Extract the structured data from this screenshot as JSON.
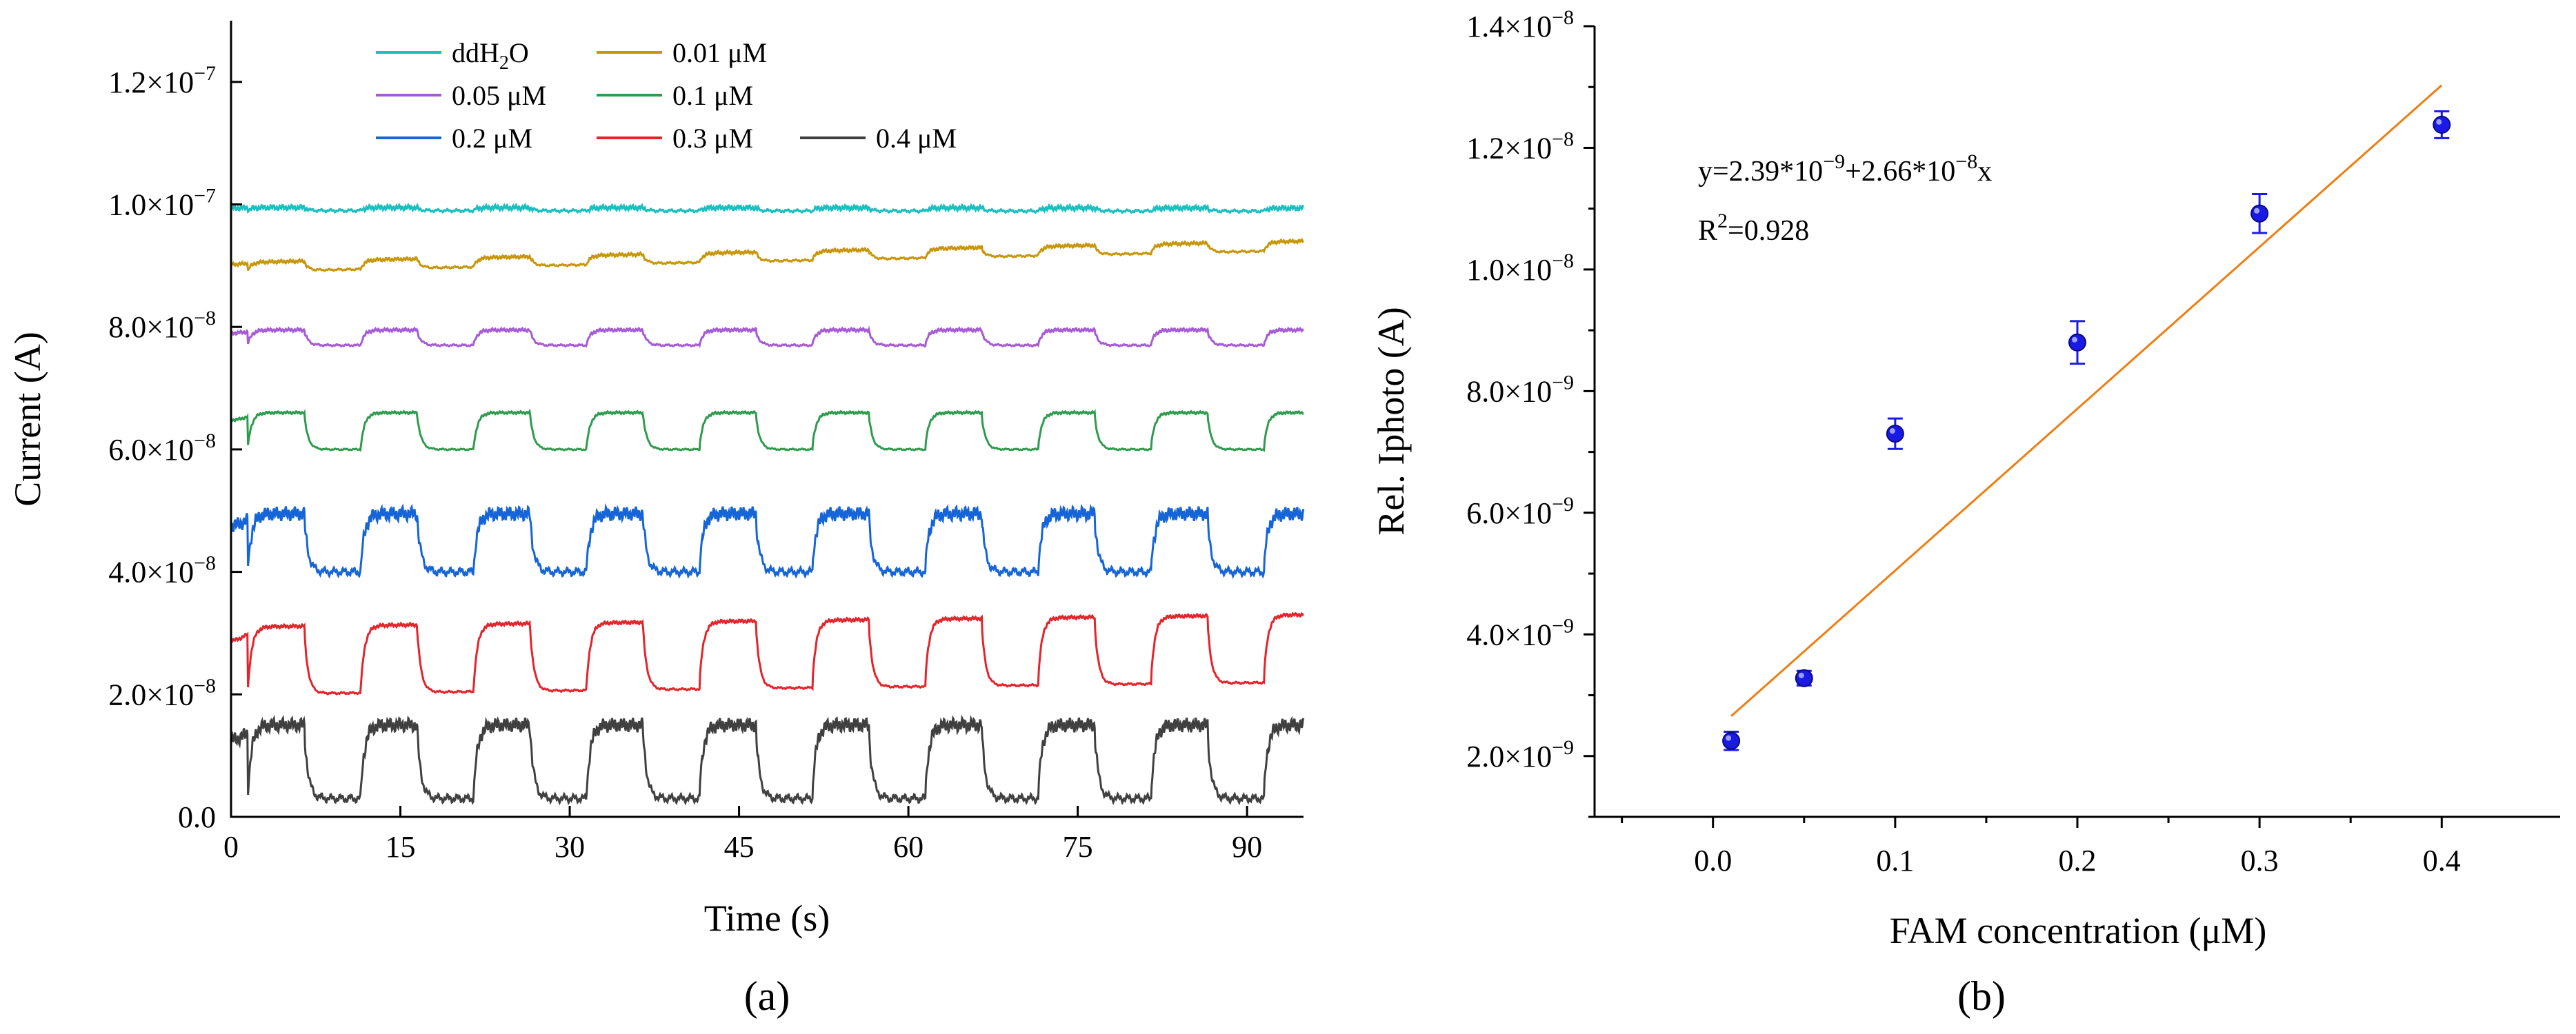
{
  "chart_data": [
    {
      "type": "line",
      "panel": "(a)",
      "title": "",
      "xlabel": "Time (s)",
      "ylabel": "Current (A)",
      "xlim": [
        0,
        95
      ],
      "ylim": [
        0,
        1.3e-07
      ],
      "xticks": [
        0,
        15,
        30,
        45,
        60,
        75,
        90
      ],
      "xtick_labels": [
        "0",
        "15",
        "30",
        "45",
        "60",
        "75",
        "90"
      ],
      "yticks": [
        {
          "value": 0,
          "mant": "0.0",
          "exp": ""
        },
        {
          "value": 2e-08,
          "mant": "2.0×10",
          "exp": "−8"
        },
        {
          "value": 4e-08,
          "mant": "4.0×10",
          "exp": "−8"
        },
        {
          "value": 6e-08,
          "mant": "6.0×10",
          "exp": "−8"
        },
        {
          "value": 8e-08,
          "mant": "8.0×10",
          "exp": "−8"
        },
        {
          "value": 1e-07,
          "mant": "1.0×10",
          "exp": "−7"
        },
        {
          "value": 1.2e-07,
          "mant": "1.2×10",
          "exp": "−7"
        }
      ],
      "light_period_s": 10,
      "light_on_s": 5,
      "legend_position": "top",
      "series": [
        {
          "name": "ddH2O",
          "label_main": "ddH",
          "label_sub": "2",
          "label_tail": "O",
          "color": "#1ABFBF",
          "dark": 9.9e-08,
          "light": 9.95e-08,
          "drift": -1e-10,
          "noise": 3e-10
        },
        {
          "name": "0.01 μM",
          "label_main": "0.01 μM",
          "label_sub": "",
          "label_tail": "",
          "color": "#C8960A",
          "dark": 8.9e-08,
          "light": 9.05e-08,
          "drift": 3.5e-09,
          "noise": 2e-10
        },
        {
          "name": "0.05 μM",
          "label_main": "0.05 μM",
          "label_sub": "",
          "label_tail": "",
          "color": "#A65BD6",
          "dark": 7.7e-08,
          "light": 7.95e-08,
          "drift": 0.0,
          "noise": 2e-10
        },
        {
          "name": "0.1 μM",
          "label_main": "0.1 μM",
          "label_sub": "",
          "label_tail": "",
          "color": "#2E9B4E",
          "dark": 6e-08,
          "light": 6.6e-08,
          "drift": 0.0,
          "noise": 1.5e-10
        },
        {
          "name": "0.2 μM",
          "label_main": "0.2 μM",
          "label_sub": "",
          "label_tail": "",
          "color": "#1565D8",
          "dark": 4e-08,
          "light": 4.95e-08,
          "drift": 0.0,
          "noise": 8e-10
        },
        {
          "name": "0.3 μM",
          "label_main": "0.3 μM",
          "label_sub": "",
          "label_tail": "",
          "color": "#E3242B",
          "dark": 2e-08,
          "light": 3.1e-08,
          "drift": 2e-09,
          "noise": 2e-10
        },
        {
          "name": "0.4 μM",
          "label_main": "0.4 μM",
          "label_sub": "",
          "label_tail": "",
          "color": "#404040",
          "dark": 3e-09,
          "light": 1.5e-08,
          "drift": 0.0,
          "noise": 8e-10
        }
      ]
    },
    {
      "type": "scatter",
      "panel": "(b)",
      "title": "",
      "xlabel": "FAM concentration (μM)",
      "ylabel": "Rel. Iphoto (A)",
      "xlim": [
        -0.065,
        0.465
      ],
      "ylim": [
        1e-09,
        1.4e-08
      ],
      "xticks": [
        0.0,
        0.1,
        0.2,
        0.3,
        0.4
      ],
      "xtick_labels": [
        "0.0",
        "0.1",
        "0.2",
        "0.3",
        "0.4"
      ],
      "yticks": [
        {
          "value": 2e-09,
          "mant": "2.0×10",
          "exp": "−9"
        },
        {
          "value": 4e-09,
          "mant": "4.0×10",
          "exp": "−9"
        },
        {
          "value": 6e-09,
          "mant": "6.0×10",
          "exp": "−9"
        },
        {
          "value": 8e-09,
          "mant": "8.0×10",
          "exp": "−9"
        },
        {
          "value": 1e-08,
          "mant": "1.0×10",
          "exp": "−8"
        },
        {
          "value": 1.2e-08,
          "mant": "1.2×10",
          "exp": "−8"
        },
        {
          "value": 1.4e-08,
          "mant": "1.4×10",
          "exp": "−8"
        }
      ],
      "x": [
        0.01,
        0.05,
        0.1,
        0.2,
        0.3,
        0.4
      ],
      "y": [
        2.25e-09,
        3.28e-09,
        7.3e-09,
        8.8e-09,
        1.092e-08,
        1.238e-08
      ],
      "yerr": [
        1.5e-10,
        1.2e-10,
        2.5e-10,
        3.5e-10,
        3.2e-10,
        2.2e-10
      ],
      "marker_color": "#1A1AE6",
      "fit": {
        "intercept": 2.39e-09,
        "slope": 2.66e-08,
        "x_range": [
          0.01,
          0.4
        ],
        "color": "#F07D10"
      },
      "equation": {
        "p1": "y=2.39*10",
        "s1": "−9",
        "p2": "+2.66*10",
        "s2": "−8",
        "p3": "x"
      },
      "r2": {
        "p1": "R",
        "s1": "2",
        "p2": "=0.928"
      }
    }
  ]
}
